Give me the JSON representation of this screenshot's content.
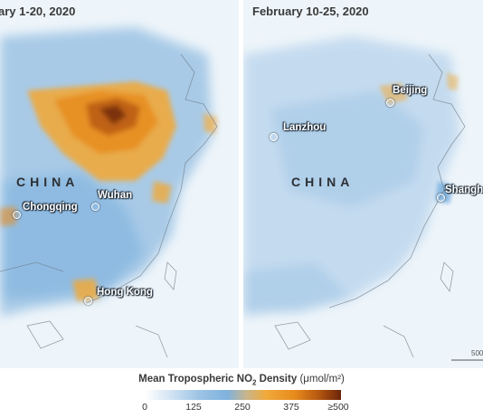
{
  "left_panel": {
    "date_label": "ary 1-20, 2020",
    "country_label": "CHINA",
    "cities": [
      "Chongqing",
      "Wuhan",
      "Hong Kong"
    ]
  },
  "right_panel": {
    "date_label": "February 10-25, 2020",
    "country_label": "CHINA",
    "cities": [
      "Beijing",
      "Lanzhou",
      "Shangha"
    ],
    "scale_label": "500"
  },
  "legend": {
    "title_main": "Mean Tropospheric NO",
    "title_sub": "2",
    "title_tail": " Density",
    "unit": "(μmol/m²)",
    "ticks": [
      "0",
      "125",
      "250",
      "375",
      "≥500"
    ]
  },
  "colors": {
    "low": "#d6e6f4",
    "mid_blue": "#7fb2de",
    "orange": "#f0a93a",
    "dark": "#6b2408"
  }
}
